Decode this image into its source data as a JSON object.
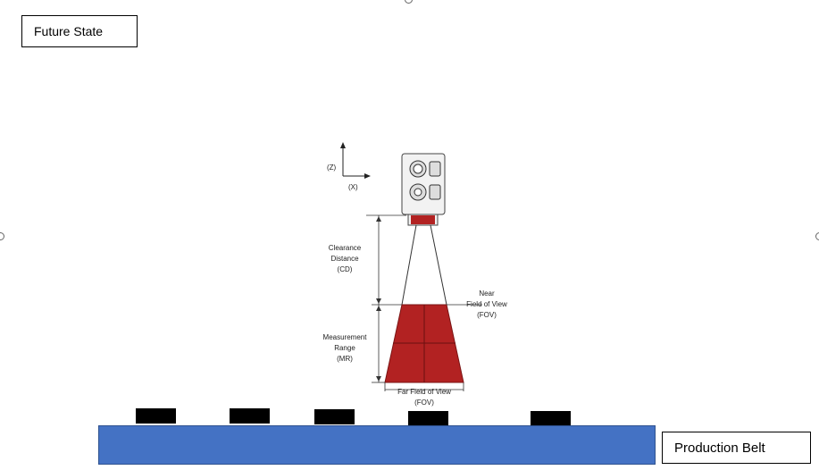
{
  "title_box": "Future State",
  "belt_label": "Production Belt",
  "axes": {
    "z": "(Z)",
    "x": "(X)"
  },
  "annotations": {
    "clearance": [
      "Clearance",
      "Distance",
      "(CD)"
    ],
    "measurement": [
      "Measurement",
      "Range",
      "(MR)"
    ],
    "near_fov": [
      "Near",
      "Field of View",
      "(FOV)"
    ],
    "far_fov": [
      "Far Field of View",
      "(FOV)"
    ]
  },
  "colors": {
    "belt": "#4472c4",
    "fov": "#b22222",
    "items": "#000000"
  },
  "belt_items": 5
}
